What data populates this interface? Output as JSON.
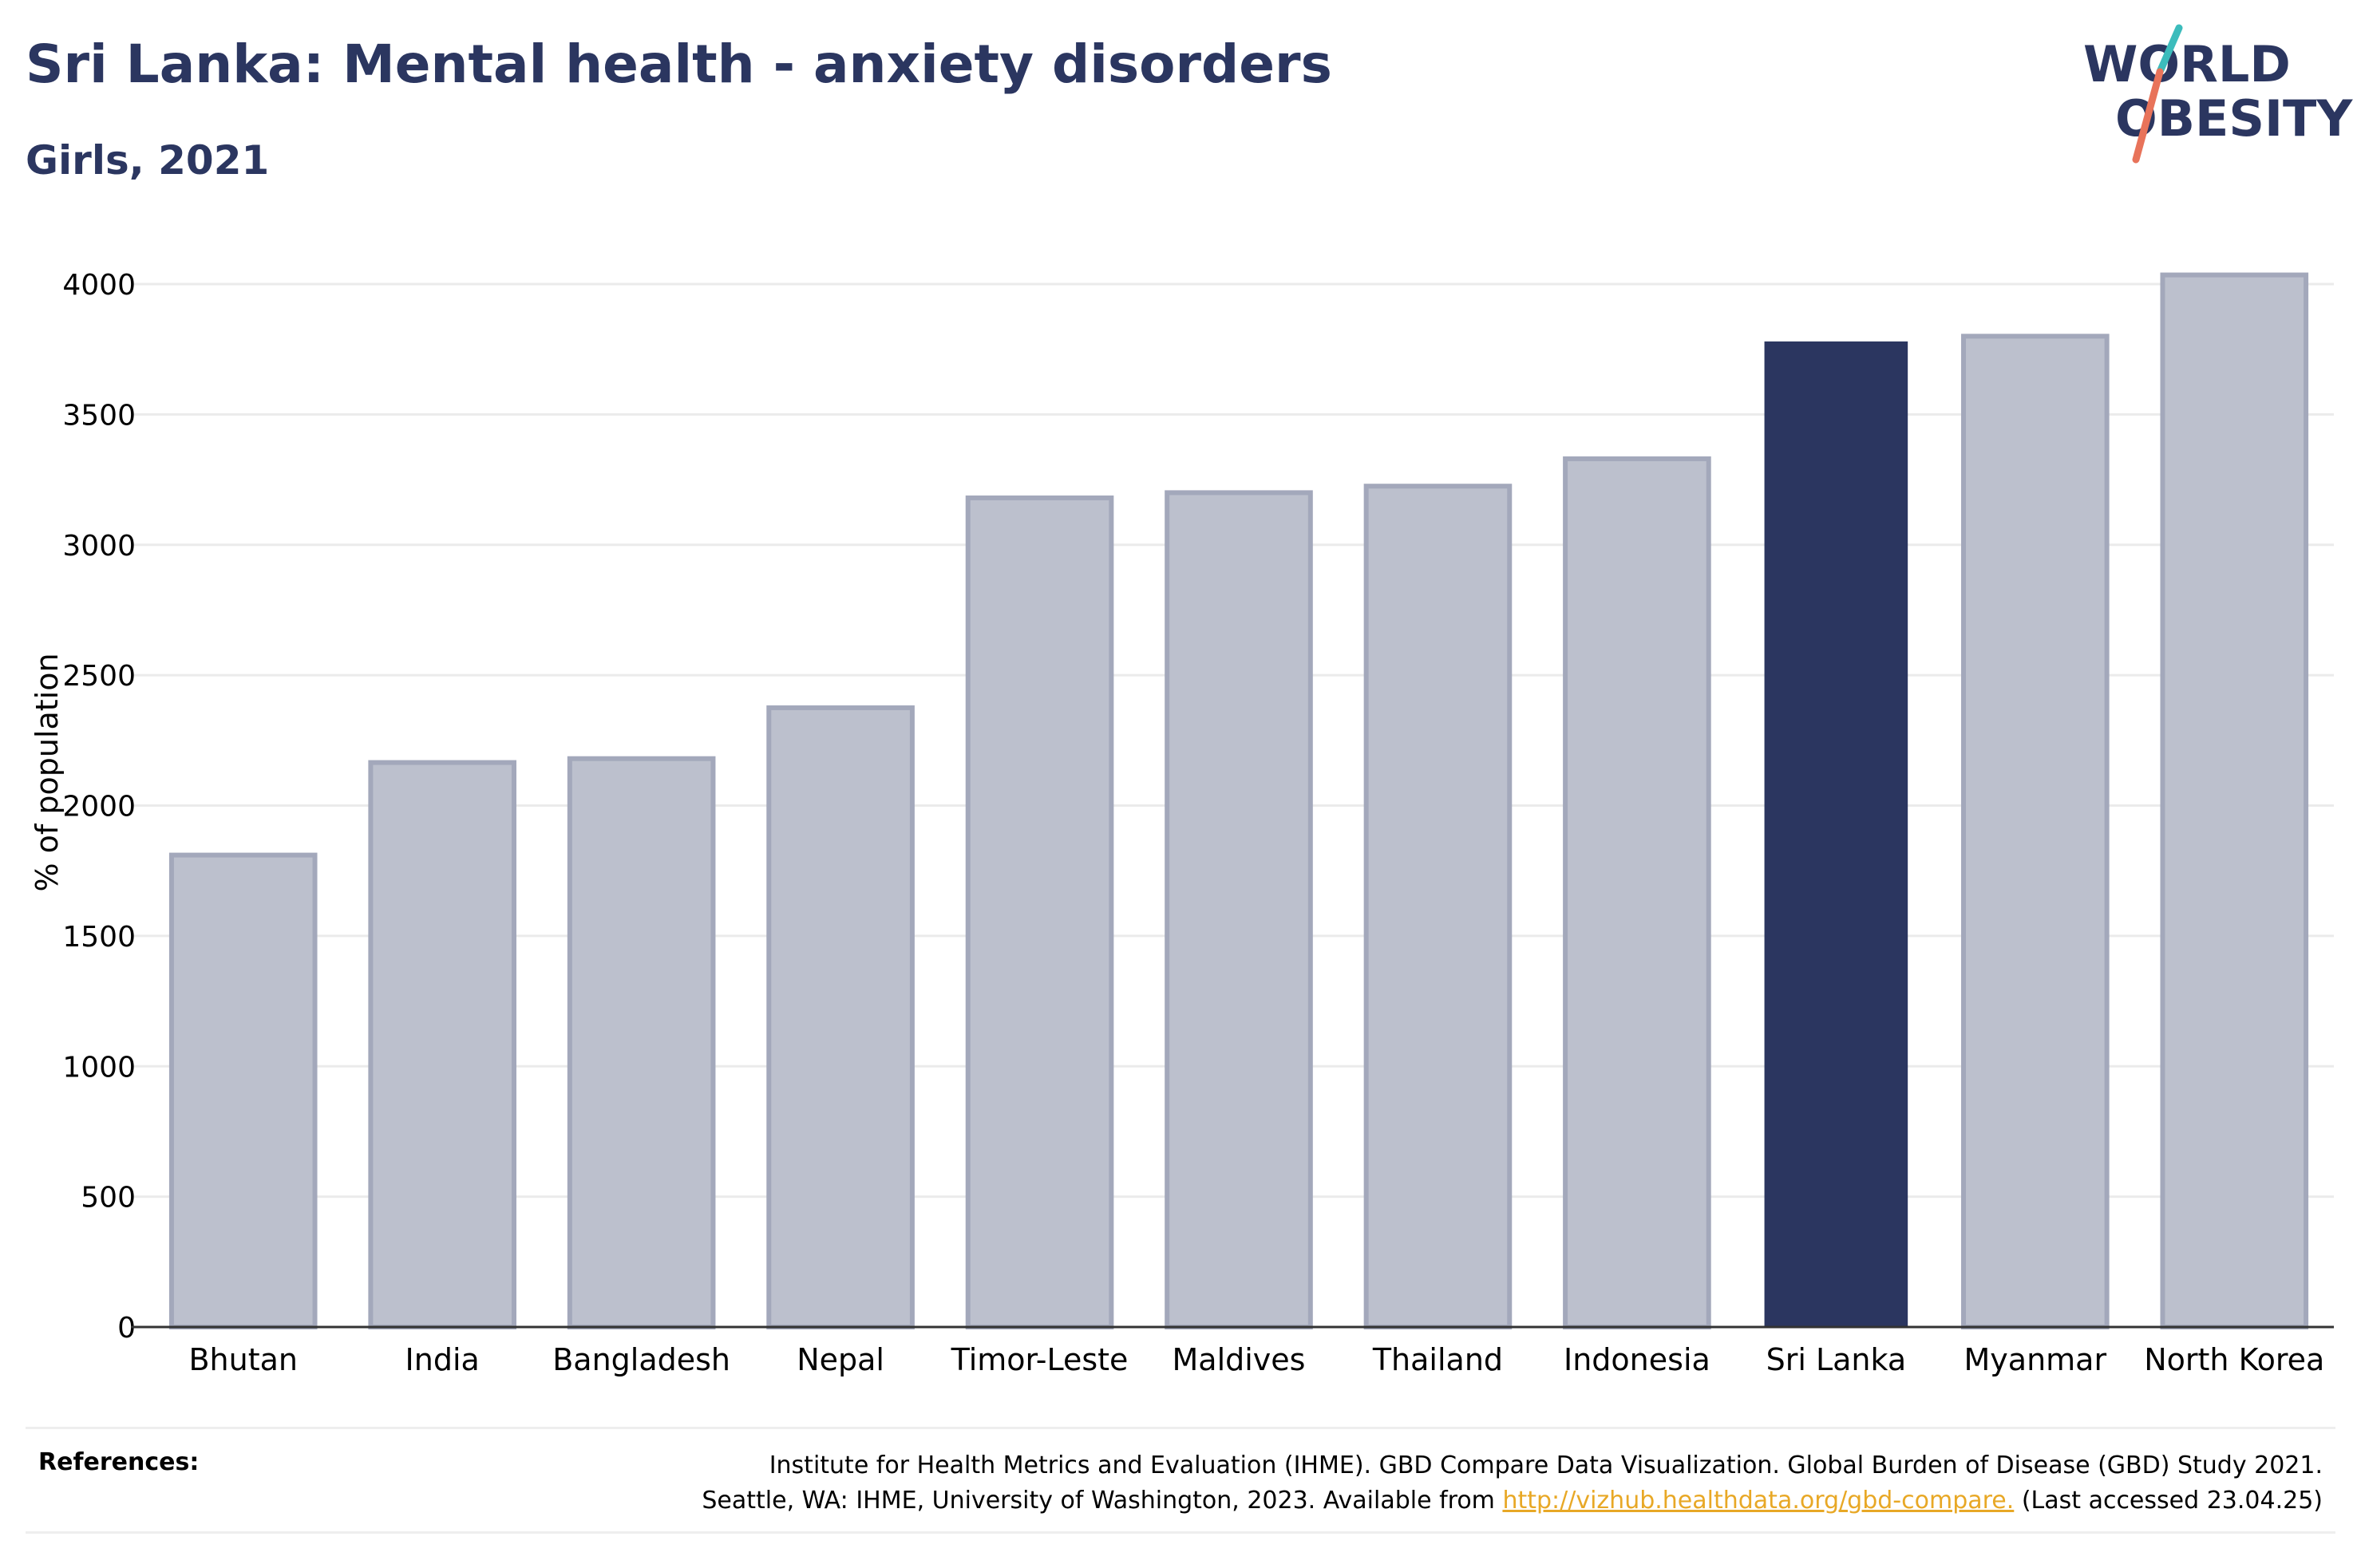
{
  "header": {
    "title": "Sri Lanka: Mental health - anxiety disorders",
    "subtitle": "Girls, 2021"
  },
  "logo": {
    "line1": "WORLD",
    "line2": "OBESITY",
    "colors": {
      "text": "#2b3660",
      "slash_top": "#3cbcbc",
      "slash_bottom": "#e8735a"
    }
  },
  "chart_data": {
    "type": "bar",
    "categories": [
      "Bhutan",
      "India",
      "Bangladesh",
      "Nepal",
      "Timor-Leste",
      "Maldives",
      "Thailand",
      "Indonesia",
      "Sri Lanka",
      "Myanmar",
      "North Korea"
    ],
    "values": [
      1810,
      2165,
      2180,
      2375,
      3180,
      3200,
      3225,
      3330,
      3780,
      3800,
      4035
    ],
    "highlight": "Sri Lanka",
    "ylabel": "% of population",
    "xlabel": "",
    "ylim": [
      0,
      4000
    ],
    "yticks": [
      0,
      500,
      1000,
      1500,
      2000,
      2500,
      3000,
      3500,
      4000
    ],
    "grid": true,
    "colors": {
      "default_bar": "#bcc0cd",
      "default_edge": "#a3a8bb",
      "highlight_bar": "#2b3660",
      "grid": "#ebebeb",
      "axis": "#333333"
    }
  },
  "references": {
    "label": "References:",
    "line1": "Institute for Health Metrics and Evaluation (IHME). GBD Compare Data Visualization. Global Burden of Disease (GBD) Study 2021.",
    "line2_prefix": "Seattle, WA: IHME, University of Washington, 2023. Available from ",
    "link": "http://vizhub.healthdata.org/gbd-compare.",
    "line2_suffix": " (Last accessed 23.04.25)"
  }
}
